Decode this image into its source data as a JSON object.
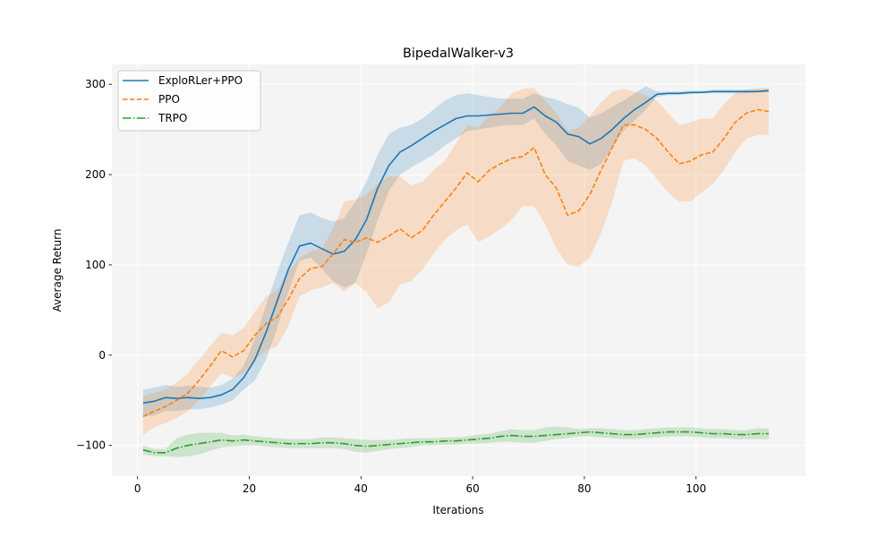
{
  "chart_data": {
    "type": "line",
    "title": "BipedalWalker-v3",
    "xlabel": "Iterations",
    "ylabel": "Average Return",
    "xlim": [
      -4.6,
      119.6
    ],
    "ylim": [
      -134,
      322
    ],
    "xticks": [
      0,
      20,
      40,
      60,
      80,
      100
    ],
    "yticks": [
      -100,
      0,
      100,
      200,
      300
    ],
    "grid": true,
    "background": "#f4f4f4",
    "legend_position": "top-left",
    "series": [
      {
        "name": "ExploRLer+PPO",
        "color": "#1f77b4",
        "style": "solid",
        "x": [
          1,
          3,
          5,
          7,
          9,
          11,
          13,
          15,
          17,
          19,
          21,
          23,
          25,
          27,
          29,
          31,
          33,
          35,
          37,
          39,
          41,
          43,
          45,
          47,
          49,
          51,
          53,
          55,
          57,
          59,
          61,
          63,
          65,
          67,
          69,
          71,
          73,
          75,
          77,
          79,
          81,
          83,
          85,
          87,
          89,
          91,
          93,
          95,
          97,
          99,
          101,
          103,
          105,
          107,
          109,
          111,
          113
        ],
        "y": [
          -53,
          -51,
          -47,
          -48,
          -47,
          -48,
          -47,
          -44,
          -38,
          -25,
          -5,
          25,
          60,
          95,
          121,
          124,
          118,
          112,
          115,
          128,
          150,
          185,
          210,
          225,
          232,
          240,
          248,
          255,
          262,
          265,
          265,
          266,
          267,
          268,
          268,
          275,
          265,
          258,
          245,
          242,
          234,
          240,
          250,
          262,
          272,
          280,
          289,
          290,
          290,
          291,
          291,
          292,
          292,
          292,
          292,
          292,
          293
        ],
        "lower": [
          -68,
          -67,
          -62,
          -62,
          -60,
          -60,
          -58,
          -55,
          -50,
          -38,
          -28,
          -5,
          30,
          70,
          105,
          108,
          96,
          82,
          75,
          80,
          112,
          150,
          182,
          200,
          208,
          215,
          222,
          232,
          240,
          248,
          250,
          252,
          254,
          255,
          255,
          262,
          245,
          232,
          215,
          210,
          205,
          212,
          230,
          248,
          260,
          272,
          286,
          288,
          288,
          289,
          290,
          290,
          290,
          290,
          290,
          291,
          291
        ],
        "upper": [
          -38,
          -36,
          -33,
          -35,
          -34,
          -35,
          -36,
          -33,
          -26,
          -12,
          18,
          55,
          92,
          125,
          155,
          158,
          152,
          148,
          152,
          170,
          192,
          222,
          245,
          252,
          255,
          262,
          272,
          282,
          288,
          290,
          288,
          286,
          284,
          284,
          284,
          290,
          286,
          283,
          278,
          274,
          263,
          268,
          275,
          282,
          290,
          298,
          292,
          292,
          292,
          293,
          293,
          294,
          294,
          294,
          294,
          294,
          295
        ]
      },
      {
        "name": "PPO",
        "color": "#ff7f0e",
        "style": "dashed",
        "x": [
          1,
          3,
          5,
          7,
          9,
          11,
          13,
          15,
          17,
          19,
          21,
          23,
          25,
          27,
          29,
          31,
          33,
          35,
          37,
          39,
          41,
          43,
          45,
          47,
          49,
          51,
          53,
          55,
          57,
          59,
          61,
          63,
          65,
          67,
          69,
          71,
          73,
          75,
          77,
          79,
          81,
          83,
          85,
          87,
          89,
          91,
          93,
          95,
          97,
          99,
          101,
          103,
          105,
          107,
          109,
          111,
          113
        ],
        "y": [
          -68,
          -62,
          -57,
          -50,
          -42,
          -28,
          -12,
          5,
          -2,
          5,
          22,
          35,
          42,
          62,
          85,
          96,
          98,
          112,
          128,
          125,
          130,
          125,
          132,
          140,
          130,
          138,
          155,
          170,
          185,
          202,
          192,
          205,
          212,
          218,
          220,
          230,
          200,
          185,
          155,
          160,
          178,
          205,
          230,
          255,
          255,
          250,
          240,
          225,
          212,
          215,
          222,
          225,
          240,
          258,
          268,
          272,
          270
        ],
        "lower": [
          -88,
          -80,
          -75,
          -70,
          -62,
          -50,
          -35,
          -20,
          -25,
          -20,
          -5,
          5,
          10,
          32,
          65,
          72,
          75,
          80,
          70,
          80,
          70,
          52,
          58,
          78,
          82,
          95,
          112,
          128,
          138,
          145,
          125,
          132,
          140,
          150,
          165,
          165,
          145,
          118,
          100,
          98,
          108,
          135,
          170,
          215,
          218,
          210,
          195,
          180,
          170,
          170,
          180,
          190,
          205,
          225,
          240,
          244,
          244
        ],
        "upper": [
          -45,
          -42,
          -38,
          -30,
          -20,
          -5,
          10,
          25,
          22,
          30,
          48,
          65,
          72,
          92,
          108,
          115,
          118,
          140,
          170,
          172,
          178,
          190,
          198,
          198,
          188,
          192,
          205,
          215,
          235,
          255,
          252,
          265,
          275,
          290,
          295,
          296,
          282,
          268,
          248,
          252,
          265,
          280,
          292,
          295,
          292,
          288,
          282,
          268,
          255,
          258,
          262,
          262,
          278,
          290,
          294,
          296,
          296
        ]
      },
      {
        "name": "TRPO",
        "color": "#2ca02c",
        "style": "dashdot",
        "x": [
          1,
          3,
          5,
          7,
          9,
          11,
          13,
          15,
          17,
          19,
          21,
          23,
          25,
          27,
          29,
          31,
          33,
          35,
          37,
          39,
          41,
          43,
          45,
          47,
          49,
          51,
          53,
          55,
          57,
          59,
          61,
          63,
          65,
          67,
          69,
          71,
          73,
          75,
          77,
          79,
          81,
          83,
          85,
          87,
          89,
          91,
          93,
          95,
          97,
          99,
          101,
          103,
          105,
          107,
          109,
          111,
          113
        ],
        "y": [
          -105,
          -108,
          -108,
          -103,
          -100,
          -98,
          -96,
          -94,
          -95,
          -94,
          -95,
          -96,
          -97,
          -98,
          -98,
          -98,
          -97,
          -97,
          -98,
          -100,
          -101,
          -100,
          -99,
          -98,
          -97,
          -96,
          -96,
          -95,
          -95,
          -94,
          -93,
          -92,
          -90,
          -89,
          -90,
          -90,
          -89,
          -88,
          -87,
          -86,
          -85,
          -86,
          -87,
          -88,
          -88,
          -87,
          -86,
          -85,
          -85,
          -85,
          -86,
          -87,
          -87,
          -88,
          -88,
          -87,
          -87
        ],
        "lower": [
          -110,
          -112,
          -112,
          -113,
          -112,
          -110,
          -106,
          -102,
          -101,
          -100,
          -100,
          -101,
          -102,
          -103,
          -103,
          -103,
          -103,
          -103,
          -104,
          -107,
          -108,
          -106,
          -104,
          -103,
          -102,
          -100,
          -100,
          -99,
          -99,
          -98,
          -98,
          -97,
          -96,
          -96,
          -97,
          -97,
          -95,
          -93,
          -92,
          -90,
          -90,
          -91,
          -92,
          -93,
          -93,
          -92,
          -91,
          -90,
          -90,
          -90,
          -91,
          -92,
          -92,
          -93,
          -93,
          -93,
          -93
        ],
        "upper": [
          -100,
          -104,
          -104,
          -92,
          -88,
          -86,
          -86,
          -86,
          -89,
          -88,
          -90,
          -91,
          -92,
          -93,
          -93,
          -93,
          -91,
          -91,
          -92,
          -93,
          -94,
          -94,
          -94,
          -93,
          -92,
          -92,
          -92,
          -91,
          -91,
          -90,
          -88,
          -87,
          -84,
          -82,
          -83,
          -83,
          -80,
          -79,
          -80,
          -82,
          -81,
          -81,
          -82,
          -83,
          -83,
          -82,
          -81,
          -80,
          -80,
          -80,
          -81,
          -82,
          -82,
          -83,
          -83,
          -81,
          -81
        ]
      }
    ]
  }
}
